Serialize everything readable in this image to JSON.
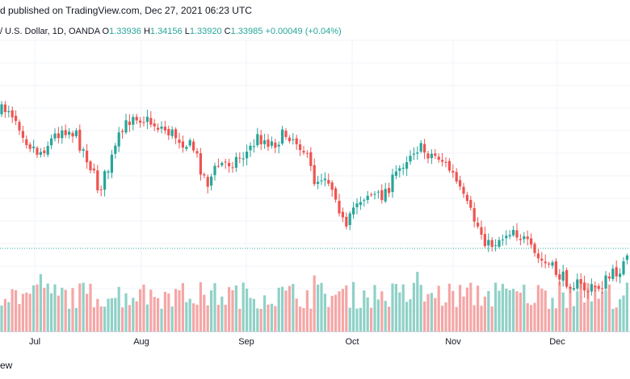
{
  "header": {
    "published": "d published on TradingView.com, Dec 27, 2021 06:23 UTC",
    "symbol": "/ U.S. Dollar, 1D, OANDA",
    "ohlc": [
      {
        "label": "O",
        "value": "1.33936"
      },
      {
        "label": "H",
        "value": "1.34156"
      },
      {
        "label": "L",
        "value": "1.33920"
      },
      {
        "label": "C",
        "value": "1.33985"
      }
    ],
    "change": "+0.00049 (+0.04%)"
  },
  "footer": {
    "text": "ew"
  },
  "colors": {
    "up": "#26a69a",
    "down": "#ef5350",
    "volume_up": "#8fd1c7",
    "volume_down": "#f5a6a6",
    "grid": "#f0f3fa",
    "last_price_line": "#26a69a"
  },
  "chart_data": {
    "type": "candlestick",
    "x_ticks": [
      "Jul",
      "Aug",
      "Sep",
      "Oct",
      "Nov",
      "Dec"
    ],
    "last_close": 1.33985,
    "grid": true
  }
}
